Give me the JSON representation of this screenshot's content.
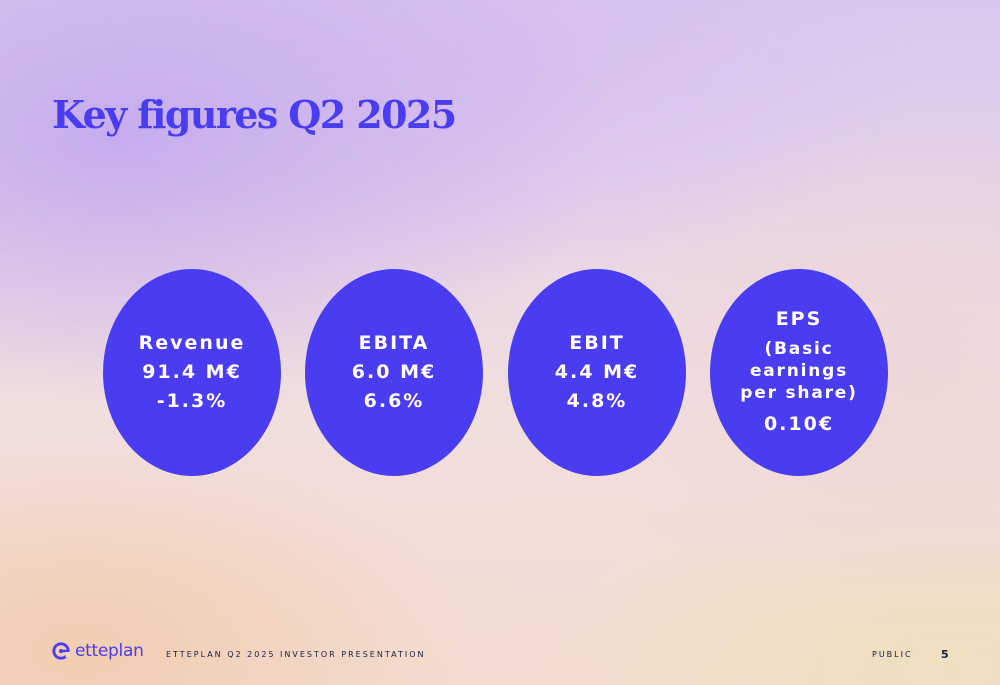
{
  "slide": {
    "title": "Key figures Q2 2025",
    "figures": [
      {
        "label": "Revenue",
        "value": "91.4 M€",
        "change": "-1.3%"
      },
      {
        "label": "EBITA",
        "value": "6.0 M€",
        "change": "6.6%"
      },
      {
        "label": "EBIT",
        "value": "4.4 M€",
        "change": "4.8%"
      },
      {
        "label": "EPS",
        "description_lines": [
          "(Basic",
          "earnings",
          "per share)"
        ],
        "value": "0.10€"
      }
    ]
  },
  "footer": {
    "logo_text": "etteplan",
    "presentation_title": "ETTEPLAN Q2 2025 INVESTOR PRESENTATION",
    "classification": "PUBLIC",
    "page_number": "5"
  },
  "colors": {
    "accent": "#4a3cf0",
    "footer_text": "#1e1e3a"
  },
  "icons": {
    "logo": "etteplan-logo-icon"
  }
}
